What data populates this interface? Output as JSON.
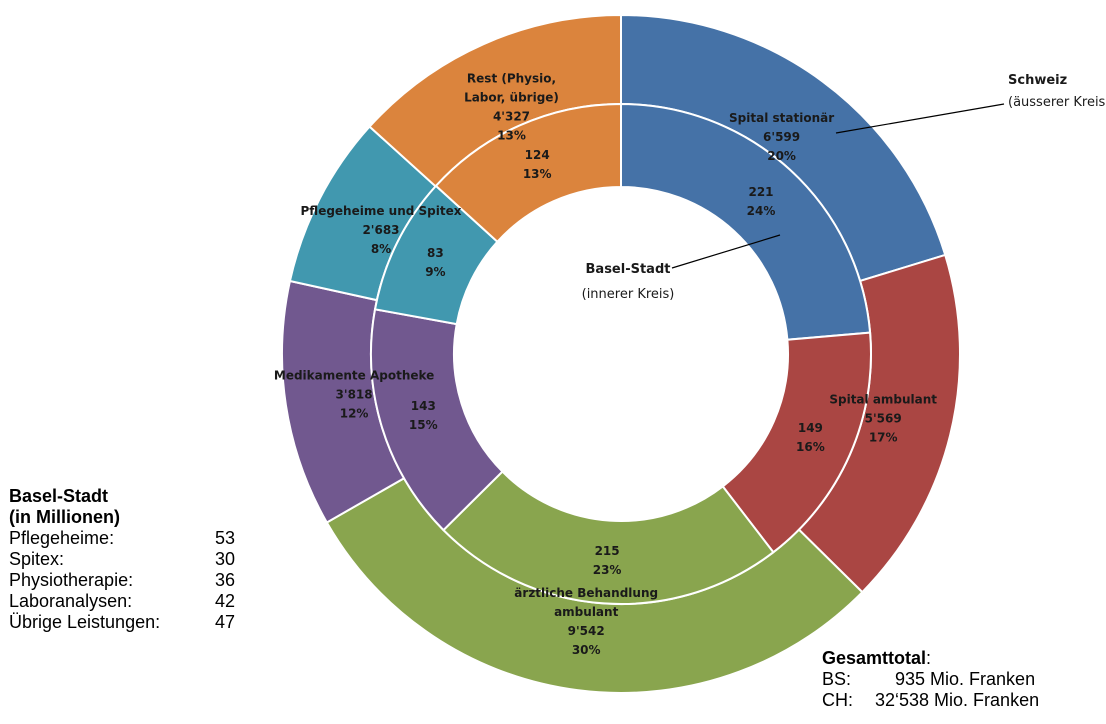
{
  "chart_data": {
    "type": "pie",
    "variant": "double-donut",
    "segment_colors": [
      "#4572A7",
      "#AA4643",
      "#89A54E",
      "#71588F",
      "#4198AF",
      "#DB843D"
    ],
    "outer_ring": {
      "name": "Schweiz",
      "segments": [
        {
          "label": "Spital stationär",
          "value": 6599,
          "value_text": "6'599",
          "percent": "20%"
        },
        {
          "label": "Spital ambulant",
          "value": 5569,
          "value_text": "5'569",
          "percent": "17%"
        },
        {
          "label": "ärztliche Behandlung ambulant",
          "value": 9542,
          "value_text": "9'542",
          "percent": "30%"
        },
        {
          "label": "Medikamente Apotheke",
          "value": 3818,
          "value_text": "3'818",
          "percent": "12%"
        },
        {
          "label": "Pflegeheime und Spitex",
          "value": 2683,
          "value_text": "2'683",
          "percent": "8%"
        },
        {
          "label": "Rest (Physio, Labor, übrige)",
          "value": 4327,
          "value_text": "4'327",
          "percent": "13%"
        }
      ]
    },
    "inner_ring": {
      "name": "Basel-Stadt",
      "segments": [
        {
          "value": 221,
          "value_text": "221",
          "percent": "24%"
        },
        {
          "value": 149,
          "value_text": "149",
          "percent": "16%"
        },
        {
          "value": 215,
          "value_text": "215",
          "percent": "23%"
        },
        {
          "value": 143,
          "value_text": "143",
          "percent": "15%"
        },
        {
          "value": 83,
          "value_text": "83",
          "percent": "9%"
        },
        {
          "value": 124,
          "value_text": "124",
          "percent": "13%"
        }
      ]
    },
    "callouts": {
      "outer": {
        "title": "Schweiz",
        "subtitle": "(äusserer Kreis)"
      },
      "inner": {
        "title": "Basel-Stadt",
        "subtitle": "(innerer Kreis)"
      }
    }
  },
  "bs_breakdown": {
    "title_line1": "Basel-Stadt",
    "title_line2": "(in Millionen)",
    "rows": [
      {
        "name": "Pflegeheime:",
        "value": "53"
      },
      {
        "name": "Spitex:",
        "value": "30"
      },
      {
        "name": "Physiotherapie:",
        "value": "36"
      },
      {
        "name": "Laboranalysen:",
        "value": "42"
      },
      {
        "name": "Übrige Leistungen:",
        "value": "47"
      }
    ]
  },
  "totals": {
    "heading": "Gesamttotal",
    "heading_suffix": ":",
    "bs_label": "BS:",
    "bs_value": "     935 Mio. Franken",
    "ch_label": "CH:",
    "ch_value": " 32‘538 Mio. Franken"
  }
}
